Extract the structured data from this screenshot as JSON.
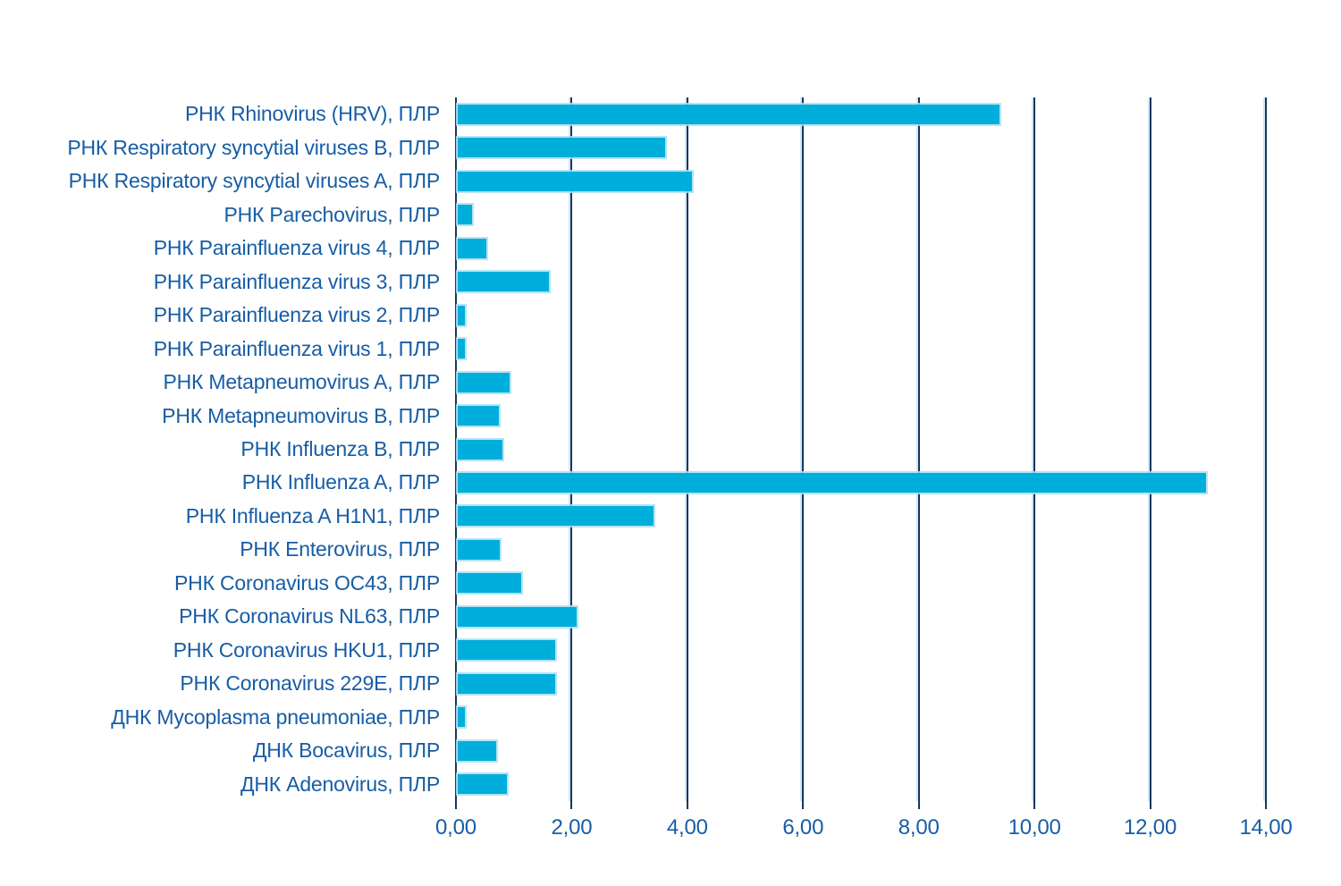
{
  "chart_data": {
    "type": "bar",
    "orientation": "horizontal",
    "title": "",
    "xlabel": "",
    "ylabel": "",
    "categories": [
      "РНК Rhinovirus (HRV), ПЛР",
      "РНК Respiratory syncytial viruses B, ПЛР",
      "РНК Respiratory syncytial viruses A, ПЛР",
      "РНК Parechovirus, ПЛР",
      "РНК Parainfluenza virus 4, ПЛР",
      "РНК Parainfluenza virus 3, ПЛР",
      "РНК Parainfluenza virus 2, ПЛР",
      "РНК Parainfluenza virus 1, ПЛР",
      "РНК Metapneumovirus A, ПЛР",
      "РНК Metapneumovirus B, ПЛР",
      "РНК Influenza B, ПЛР",
      "РНК Influenza A, ПЛР",
      "РНК Influenza A H1N1, ПЛР",
      "РНК Enterovirus, ПЛР",
      "РНК Coronavirus OC43, ПЛР",
      "РНК Coronavirus NL63, ПЛР",
      "РНК Coronavirus HKU1, ПЛР",
      "РНК Coronavirus 229E, ПЛР",
      "ДНК Mycoplasma pneumoniae, ПЛР",
      "ДНК Bocavirus, ПЛР",
      "ДНК Adenovirus, ПЛР"
    ],
    "values": [
      9.37,
      3.58,
      4.05,
      0.24,
      0.5,
      1.57,
      0.12,
      0.12,
      0.9,
      0.71,
      0.78,
      12.93,
      3.38,
      0.72,
      1.1,
      2.06,
      1.69,
      1.69,
      0.13,
      0.66,
      0.85
    ],
    "xlim": [
      0,
      14
    ],
    "x_ticks": [
      0,
      2,
      4,
      6,
      8,
      10,
      12,
      14
    ],
    "x_tick_labels": [
      "0,00",
      "2,00",
      "4,00",
      "6,00",
      "8,00",
      "10,00",
      "12,00",
      "14,00"
    ],
    "grid": true,
    "legend": false,
    "colors": {
      "bar": "#00AEDC",
      "bar_edge": "#A9DEF4",
      "grid": "#17375E",
      "grid_light": "#CFE7F6",
      "text": "#175DA5",
      "background": "#FFFFFF"
    }
  }
}
